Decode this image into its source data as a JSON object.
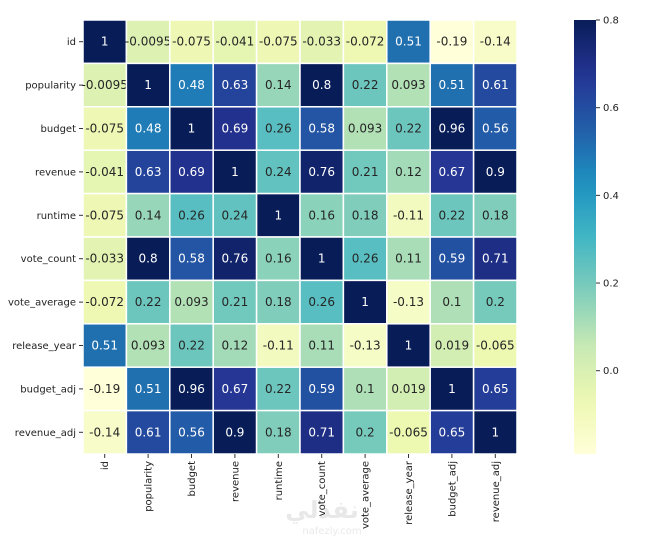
{
  "chart_data": {
    "type": "heatmap",
    "title": "",
    "xlabel": "",
    "ylabel": "",
    "labels": [
      "id",
      "popularity",
      "budget",
      "revenue",
      "runtime",
      "vote_count",
      "vote_average",
      "release_year",
      "budget_adj",
      "revenue_adj"
    ],
    "values": [
      [
        1,
        -0.0095,
        -0.075,
        -0.041,
        -0.075,
        -0.033,
        -0.072,
        0.51,
        -0.19,
        -0.14
      ],
      [
        -0.0095,
        1,
        0.48,
        0.63,
        0.14,
        0.8,
        0.22,
        0.093,
        0.51,
        0.61
      ],
      [
        -0.075,
        0.48,
        1,
        0.69,
        0.26,
        0.58,
        0.093,
        0.22,
        0.96,
        0.56
      ],
      [
        -0.041,
        0.63,
        0.69,
        1,
        0.24,
        0.76,
        0.21,
        0.12,
        0.67,
        0.9
      ],
      [
        -0.075,
        0.14,
        0.26,
        0.24,
        1,
        0.16,
        0.18,
        -0.11,
        0.22,
        0.18
      ],
      [
        -0.033,
        0.8,
        0.58,
        0.76,
        0.16,
        1,
        0.26,
        0.11,
        0.59,
        0.71
      ],
      [
        -0.072,
        0.22,
        0.093,
        0.21,
        0.18,
        0.26,
        1,
        -0.13,
        0.1,
        0.2
      ],
      [
        0.51,
        0.093,
        0.22,
        0.12,
        -0.11,
        0.11,
        -0.13,
        1,
        0.019,
        -0.065
      ],
      [
        -0.19,
        0.51,
        0.96,
        0.67,
        0.22,
        0.59,
        0.1,
        0.019,
        1,
        0.65
      ],
      [
        -0.14,
        0.61,
        0.56,
        0.9,
        0.18,
        0.71,
        0.2,
        -0.065,
        0.65,
        1
      ]
    ],
    "colormap": "YlGnBu",
    "color_range": [
      -0.19,
      0.8
    ],
    "colorbar_ticks": [
      0.0,
      0.2,
      0.4,
      0.6,
      0.8
    ],
    "colorbar_tick_labels": [
      "0.0",
      "0.2",
      "0.4",
      "0.6",
      "0.8"
    ],
    "annotations": true,
    "cell_border_color": "#ffffff"
  },
  "watermark": {
    "arabic": "نفذلي",
    "latin": "nafezly.com"
  }
}
